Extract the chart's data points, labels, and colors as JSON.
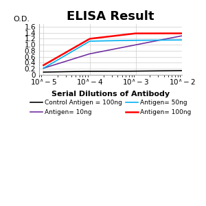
{
  "title": "ELISA Result",
  "ylabel": "O.D.",
  "xlabel": "Serial Dilutions of Antibody",
  "x_values": [
    0.01,
    0.001,
    0.0001,
    1e-05
  ],
  "black_line": {
    "label": "Control Antigen = 100ng",
    "color": "#000000",
    "y": [
      0.14,
      0.12,
      0.12,
      0.09
    ]
  },
  "purple_line": {
    "label": "Antigen= 10ng",
    "color": "#7030A0",
    "y": [
      1.3,
      1.0,
      0.7,
      0.22
    ]
  },
  "cyan_line": {
    "label": "Antigen= 50ng",
    "color": "#00B0F0",
    "y": [
      1.16,
      1.15,
      1.12,
      0.22
    ]
  },
  "red_line": {
    "label": "Antigen= 100ng",
    "color": "#FF0000",
    "y": [
      1.38,
      1.38,
      1.2,
      0.32
    ]
  },
  "ylim": [
    0,
    1.7
  ],
  "yticks": [
    0,
    0.2,
    0.4,
    0.6,
    0.8,
    1.0,
    1.2,
    1.4,
    1.6
  ],
  "title_fontsize": 13,
  "label_fontsize": 8,
  "legend_fontsize": 6.5,
  "tick_fontsize": 7.5,
  "background_color": "#ffffff"
}
